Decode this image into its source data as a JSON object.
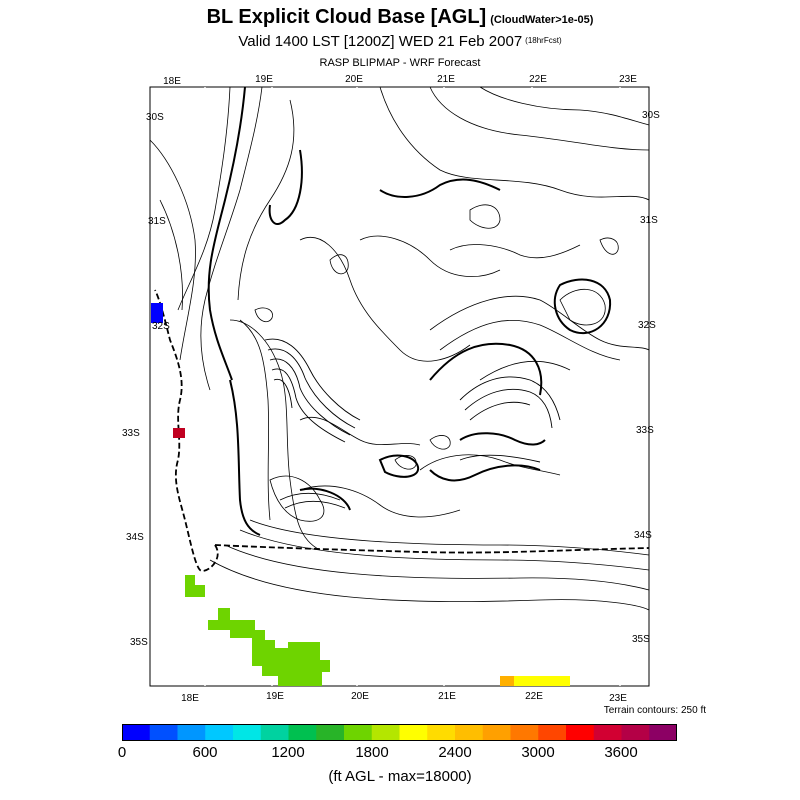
{
  "header": {
    "title": "BL Explicit Cloud Base [AGL]",
    "title_note": "(CloudWater>1e-05)",
    "valid": "Valid 1400 LST [1200Z] WED 21 Feb 2007",
    "valid_note": "(18hrFcst)",
    "model": "RASP BLIPMAP - WRF Forecast"
  },
  "map": {
    "top_lon_labels": [
      "18E",
      "19E",
      "20E",
      "21E",
      "22E",
      "23E"
    ],
    "bottom_lon_labels": [
      "18E",
      "19E",
      "20E",
      "21E",
      "22E",
      "23E"
    ],
    "left_lat_labels": [
      "30S",
      "31S",
      "32S",
      "33S",
      "34S",
      "35S"
    ],
    "right_lat_labels": [
      "30S",
      "31S",
      "32S",
      "33S",
      "34S",
      "35S"
    ],
    "terrain_note": "Terrain contours: 250 ft",
    "cloud_colors": {
      "low_blue": "#0000ff",
      "dark_red": "#c00020",
      "green": "#6ed400",
      "orange": "#ffb000",
      "yellow": "#ffff00"
    }
  },
  "colorbar": {
    "colors": [
      "#0000ff",
      "#0050ff",
      "#0096ff",
      "#00c8ff",
      "#00e6e6",
      "#00d2a0",
      "#00c050",
      "#28b428",
      "#6ed400",
      "#b4e600",
      "#ffff00",
      "#ffdc00",
      "#ffbe00",
      "#ffa000",
      "#ff7800",
      "#ff4600",
      "#ff0000",
      "#d20032",
      "#b40046",
      "#8c0064"
    ],
    "tick_labels": [
      "0",
      "600",
      "1200",
      "1800",
      "2400",
      "3000",
      "3600"
    ],
    "unit_label": "(ft AGL - max=18000)"
  }
}
